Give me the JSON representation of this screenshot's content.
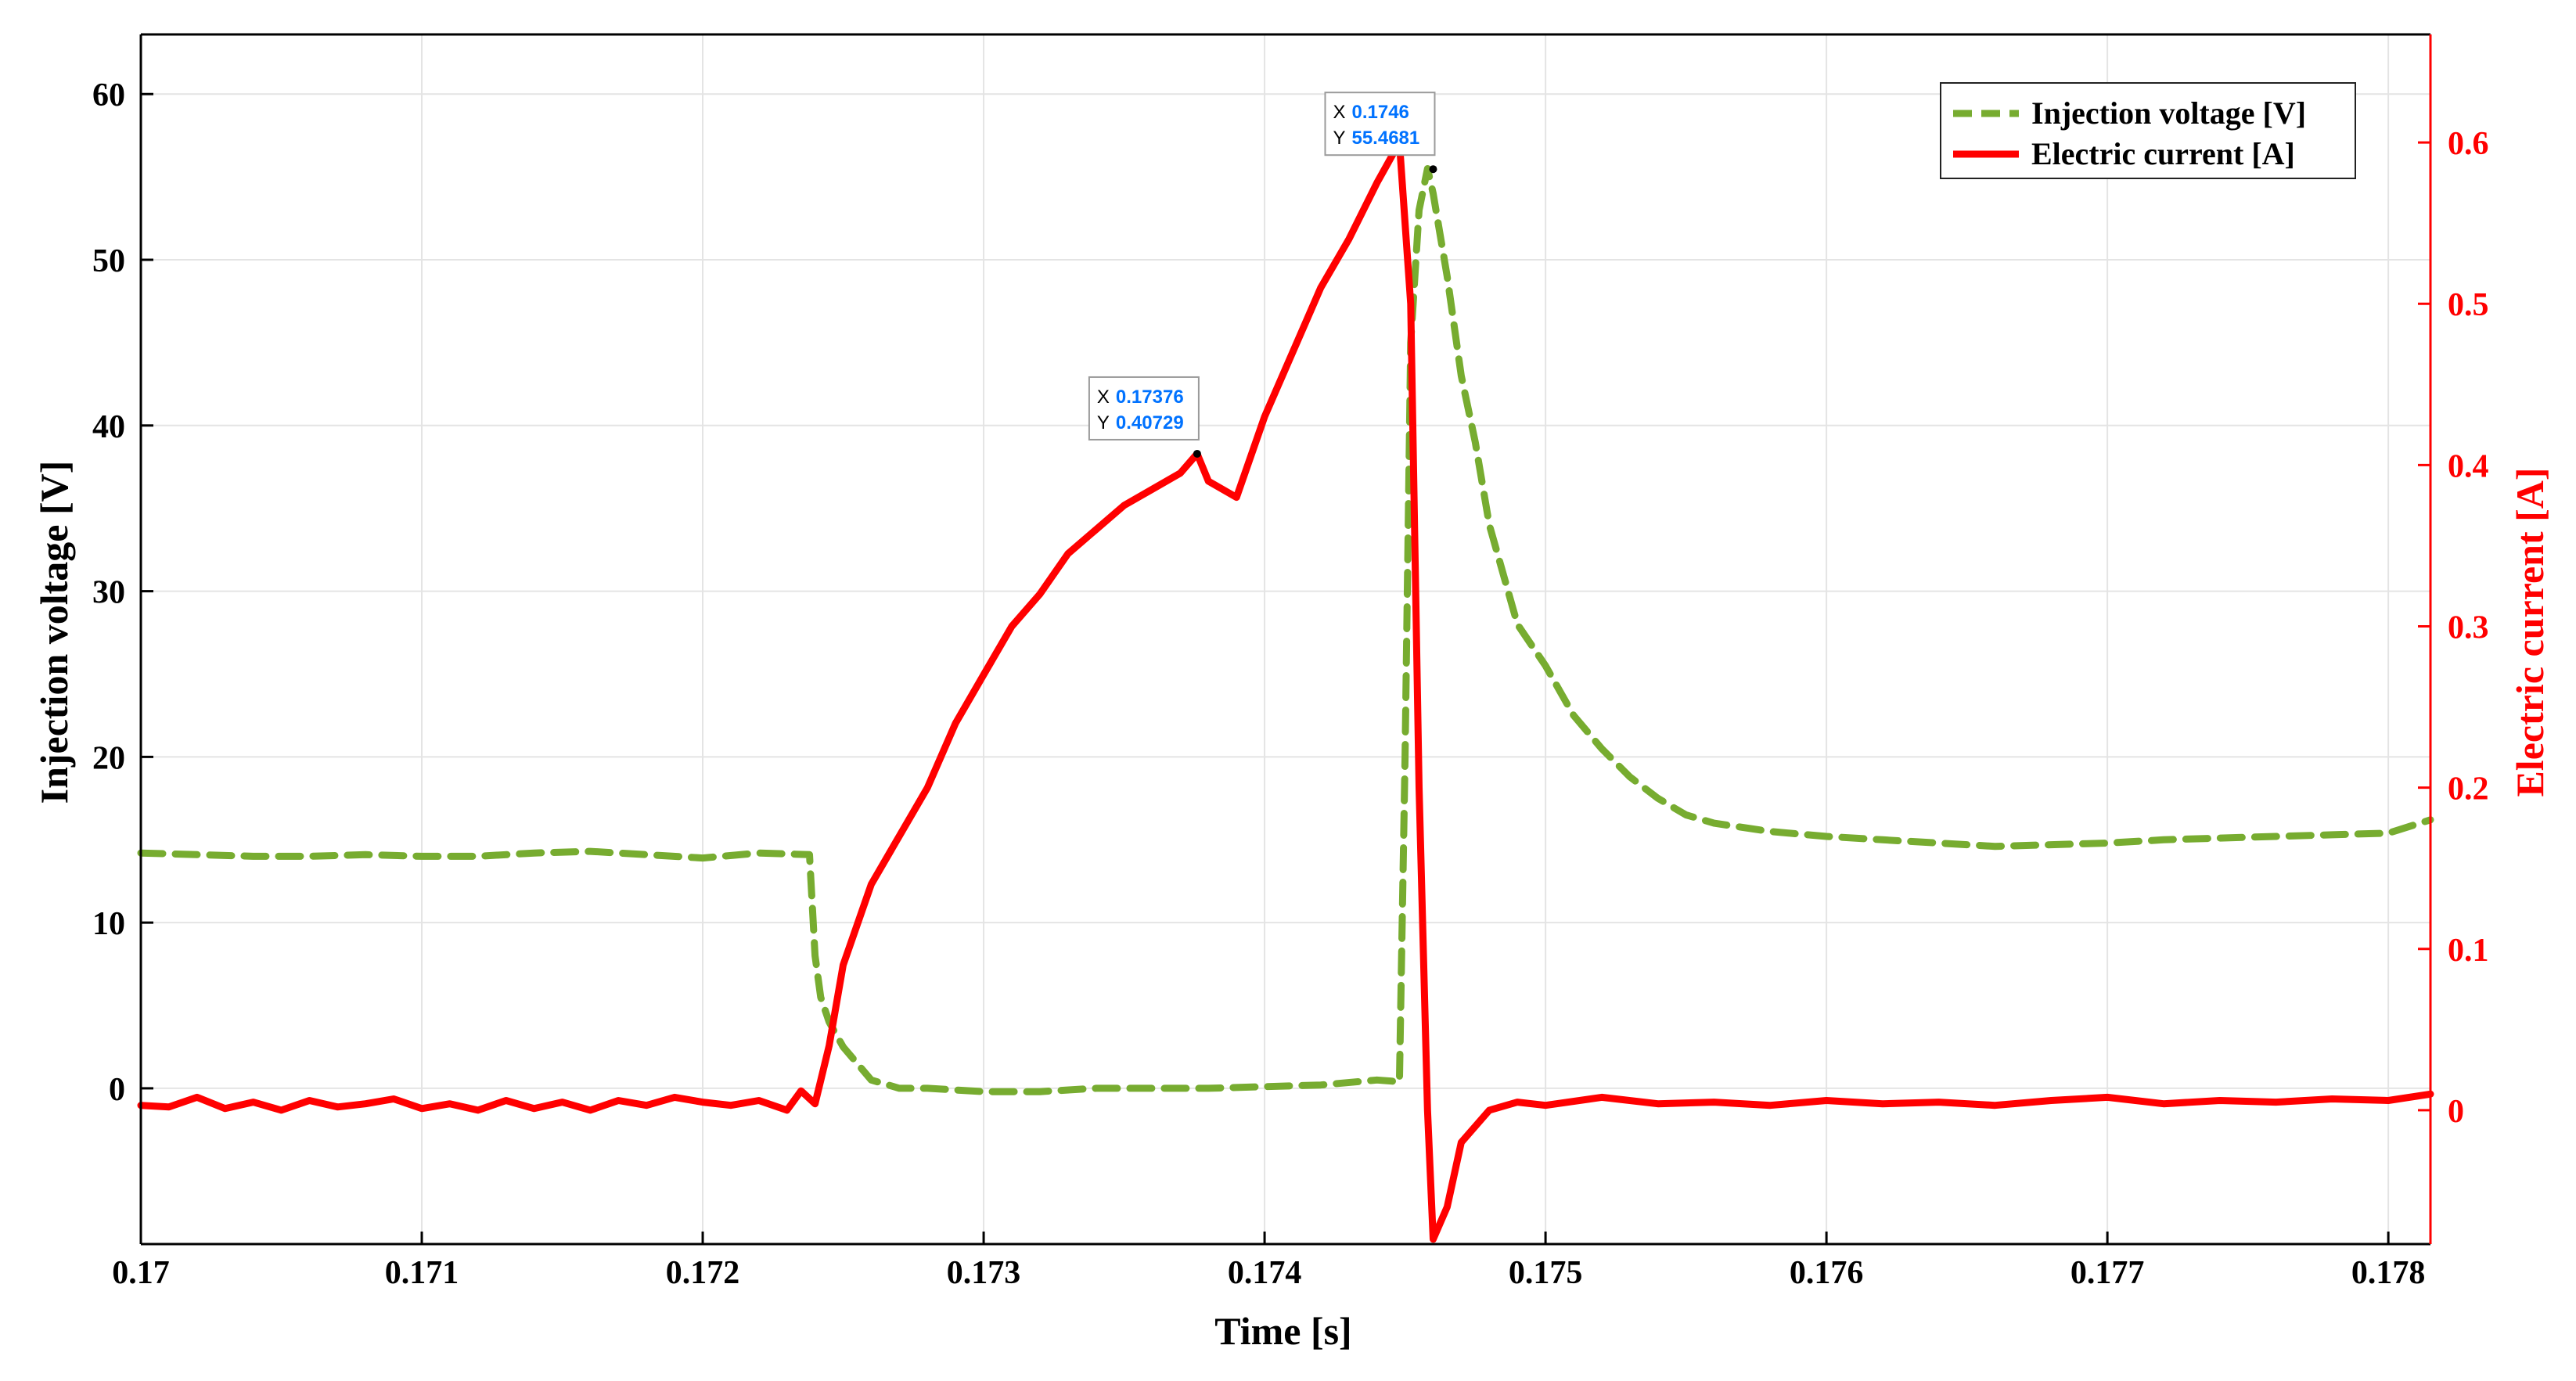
{
  "chart_data": {
    "type": "line",
    "xlabel": "Time [s]",
    "ylabel_left": "Injection voltage [V]",
    "ylabel_right": "Electric current [A]",
    "xlim": [
      0.17,
      0.17815
    ],
    "ylim_left": [
      -9.4,
      63.6
    ],
    "ylim_right": [
      -0.083,
      0.667
    ],
    "grid": true,
    "legend_position": "top-right",
    "x_ticks": [
      "0.17",
      "0.171",
      "0.172",
      "0.173",
      "0.174",
      "0.175",
      "0.176",
      "0.177",
      "0.178"
    ],
    "y_left_ticks": [
      "0",
      "10",
      "20",
      "30",
      "40",
      "50",
      "60"
    ],
    "y_right_ticks": [
      "0",
      "0.1",
      "0.2",
      "0.3",
      "0.4",
      "0.5",
      "0.6"
    ],
    "colors": {
      "voltage": "#77AC30",
      "current": "#FF0000",
      "right_axis": "#FF0000",
      "datatip_value": "#0072FF"
    },
    "series": [
      {
        "name": "Injection voltage [V]",
        "axis": "left",
        "style": "dashed",
        "x": [
          0.17,
          0.1702,
          0.1704,
          0.1706,
          0.1708,
          0.171,
          0.1712,
          0.1714,
          0.1716,
          0.1718,
          0.172,
          0.1722,
          0.17238,
          0.1724,
          0.17242,
          0.17245,
          0.1725,
          0.17255,
          0.1726,
          0.1727,
          0.1728,
          0.173,
          0.1732,
          0.1734,
          0.1736,
          0.1738,
          0.174,
          0.1742,
          0.1744,
          0.17448,
          0.1745,
          0.17452,
          0.17455,
          0.17458,
          0.1746,
          0.17465,
          0.1747,
          0.17475,
          0.1748,
          0.1749,
          0.175,
          0.1751,
          0.1752,
          0.1753,
          0.1754,
          0.1755,
          0.1756,
          0.1758,
          0.176,
          0.1762,
          0.1764,
          0.1766,
          0.1768,
          0.177,
          0.1772,
          0.1774,
          0.1776,
          0.1778,
          0.178,
          0.17815
        ],
        "values": [
          14.2,
          14.1,
          14.0,
          14.0,
          14.1,
          14.0,
          14.0,
          14.2,
          14.3,
          14.1,
          13.9,
          14.2,
          14.1,
          8.0,
          5.5,
          4.0,
          2.5,
          1.5,
          0.5,
          0.0,
          0.0,
          -0.2,
          -0.2,
          0.0,
          0.0,
          0.0,
          0.1,
          0.2,
          0.5,
          0.4,
          20.0,
          45.0,
          53.0,
          55.5,
          54.0,
          49.0,
          43.0,
          39.0,
          34.0,
          28.0,
          25.5,
          22.5,
          20.5,
          18.8,
          17.5,
          16.5,
          16.0,
          15.5,
          15.2,
          15.0,
          14.8,
          14.6,
          14.7,
          14.8,
          15.0,
          15.1,
          15.2,
          15.3,
          15.4,
          16.2
        ]
      },
      {
        "name": "Electric current [A]",
        "axis": "right",
        "style": "solid",
        "x": [
          0.17,
          0.1701,
          0.1702,
          0.1703,
          0.1704,
          0.1705,
          0.1706,
          0.1707,
          0.1708,
          0.1709,
          0.171,
          0.1711,
          0.1712,
          0.1713,
          0.1714,
          0.1715,
          0.1716,
          0.1717,
          0.1718,
          0.1719,
          0.172,
          0.1721,
          0.1722,
          0.1723,
          0.17235,
          0.1724,
          0.17245,
          0.1725,
          0.1726,
          0.1727,
          0.1728,
          0.1729,
          0.173,
          0.1731,
          0.1732,
          0.1733,
          0.1734,
          0.1735,
          0.1736,
          0.1737,
          0.17376,
          0.1738,
          0.1739,
          0.174,
          0.1741,
          0.1742,
          0.1743,
          0.1744,
          0.17448,
          0.17452,
          0.17455,
          0.17458,
          0.1746,
          0.17465,
          0.1747,
          0.1748,
          0.1749,
          0.175,
          0.1752,
          0.1754,
          0.1756,
          0.1758,
          0.176,
          0.1762,
          0.1764,
          0.1766,
          0.1768,
          0.177,
          0.1772,
          0.1774,
          0.1776,
          0.1778,
          0.178,
          0.17815
        ],
        "values": [
          0.003,
          0.002,
          0.008,
          0.001,
          0.005,
          0.0,
          0.006,
          0.002,
          0.004,
          0.007,
          0.001,
          0.004,
          0.0,
          0.006,
          0.001,
          0.005,
          0.0,
          0.006,
          0.003,
          0.008,
          0.005,
          0.003,
          0.006,
          0.0,
          0.012,
          0.004,
          0.04,
          0.09,
          0.14,
          0.17,
          0.2,
          0.24,
          0.27,
          0.3,
          0.32,
          0.345,
          0.36,
          0.375,
          0.385,
          0.395,
          0.407,
          0.39,
          0.38,
          0.43,
          0.47,
          0.51,
          0.54,
          0.575,
          0.6,
          0.5,
          0.2,
          0.0,
          -0.08,
          -0.06,
          -0.02,
          0.0,
          0.005,
          0.003,
          0.008,
          0.004,
          0.005,
          0.003,
          0.006,
          0.004,
          0.005,
          0.003,
          0.006,
          0.008,
          0.004,
          0.006,
          0.005,
          0.007,
          0.006,
          0.01
        ]
      }
    ],
    "annotations": [
      {
        "type": "datatip",
        "axis": "right",
        "x": 0.17376,
        "y": 0.407,
        "x_label": "X",
        "x_value": "0.17376",
        "y_label": "Y",
        "y_value": "0.40729"
      },
      {
        "type": "datatip",
        "axis": "left",
        "x": 0.1746,
        "y": 55.4681,
        "x_label": "X",
        "x_value": "0.1746",
        "y_label": "Y",
        "y_value": "55.4681"
      }
    ]
  }
}
